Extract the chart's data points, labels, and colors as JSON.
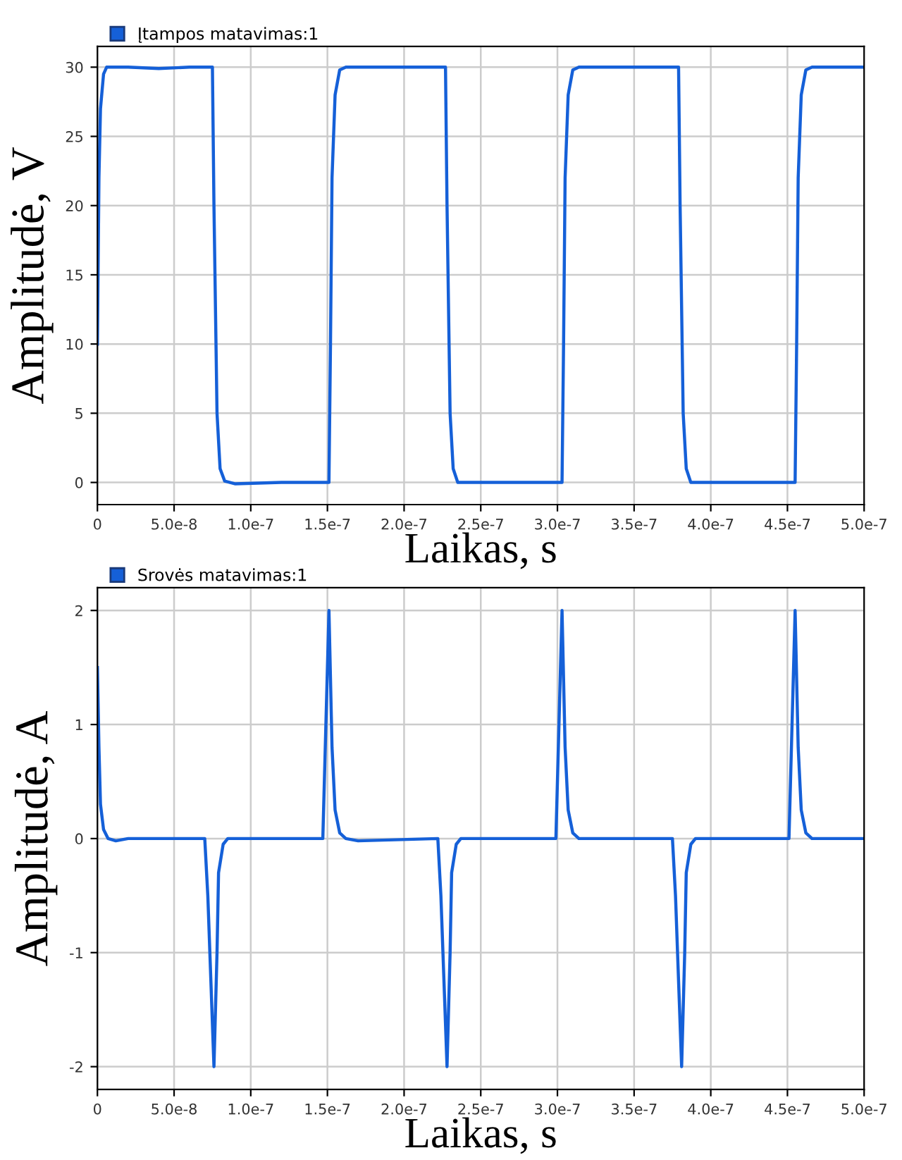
{
  "chart_data": [
    {
      "type": "line",
      "xlabel": "Laikas, s",
      "ylabel": "Amplitudė, V",
      "legend": "top left",
      "grid": true,
      "xlim": [
        0,
        5e-07
      ],
      "ylim": [
        -1.6,
        31.5
      ],
      "xticks": [
        0,
        {
          "value": 5e-08,
          "label": "5.0e-8"
        },
        {
          "value": 1e-07,
          "label": "1.0e-7"
        },
        {
          "value": 1.5e-07,
          "label": "1.5e-7"
        },
        {
          "value": 2e-07,
          "label": "2.0e-7"
        },
        {
          "value": 2.5e-07,
          "label": "2.5e-7"
        },
        {
          "value": 3e-07,
          "label": "3.0e-7"
        },
        {
          "value": 3.5e-07,
          "label": "3.5e-7"
        },
        {
          "value": 4e-07,
          "label": "4.0e-7"
        },
        {
          "value": 4.5e-07,
          "label": "4.5e-7"
        },
        {
          "value": 5e-07,
          "label": "5.0e-7"
        }
      ],
      "yticks": [
        0,
        5,
        10,
        15,
        20,
        25,
        30
      ],
      "series": [
        {
          "name": "Įtampos matavimas:1",
          "color": "#1560d8",
          "x": [
            0,
            1e-09,
            2e-09,
            4e-09,
            6e-09,
            2e-08,
            4e-08,
            6e-08,
            7.5e-08,
            7.6e-08,
            7.8e-08,
            8e-08,
            8.3e-08,
            9e-08,
            1.2e-07,
            1.51e-07,
            1.52e-07,
            1.53e-07,
            1.55e-07,
            1.58e-07,
            1.62e-07,
            2e-07,
            2.27e-07,
            2.28e-07,
            2.3e-07,
            2.32e-07,
            2.35e-07,
            2.7e-07,
            3.03e-07,
            3.04e-07,
            3.05e-07,
            3.07e-07,
            3.1e-07,
            3.14e-07,
            3.5e-07,
            3.79e-07,
            3.8e-07,
            3.82e-07,
            3.84e-07,
            3.87e-07,
            4.2e-07,
            4.55e-07,
            4.56e-07,
            4.57e-07,
            4.59e-07,
            4.62e-07,
            4.66e-07,
            5e-07
          ],
          "values": [
            10,
            22,
            27,
            29.5,
            30,
            30,
            29.9,
            30,
            30,
            20,
            5,
            1,
            0.1,
            -0.1,
            0,
            0,
            10,
            22,
            28,
            29.8,
            30,
            30,
            30,
            20,
            5,
            1,
            0,
            0,
            0,
            10,
            22,
            28,
            29.8,
            30,
            30,
            30,
            20,
            5,
            1,
            0,
            0,
            0,
            10,
            22,
            28,
            29.8,
            30,
            30
          ]
        }
      ]
    },
    {
      "type": "line",
      "xlabel": "Laikas, s",
      "ylabel": "Amplitudė, A",
      "legend": "top left",
      "grid": true,
      "xlim": [
        0,
        5e-07
      ],
      "ylim": [
        -2.2,
        2.2
      ],
      "xticks": [
        0,
        {
          "value": 5e-08,
          "label": "5.0e-8"
        },
        {
          "value": 1e-07,
          "label": "1.0e-7"
        },
        {
          "value": 1.5e-07,
          "label": "1.5e-7"
        },
        {
          "value": 2e-07,
          "label": "2.0e-7"
        },
        {
          "value": 2.5e-07,
          "label": "2.5e-7"
        },
        {
          "value": 3e-07,
          "label": "3.0e-7"
        },
        {
          "value": 3.5e-07,
          "label": "3.5e-7"
        },
        {
          "value": 4e-07,
          "label": "4.0e-7"
        },
        {
          "value": 4.5e-07,
          "label": "4.5e-7"
        },
        {
          "value": 5e-07,
          "label": "5.0e-7"
        }
      ],
      "yticks": [
        -2,
        -1,
        0,
        1,
        2
      ],
      "series": [
        {
          "name": "Srovės matavimas:1",
          "color": "#1560d8",
          "x": [
            0,
            1e-09,
            2e-09,
            4e-09,
            7e-09,
            1.2e-08,
            2e-08,
            7e-08,
            7.2e-08,
            7.6e-08,
            7.8e-08,
            7.9e-08,
            8.2e-08,
            8.5e-08,
            1.47e-07,
            1.51e-07,
            1.53e-07,
            1.55e-07,
            1.58e-07,
            1.62e-07,
            1.7e-07,
            2.22e-07,
            2.24e-07,
            2.28e-07,
            2.3e-07,
            2.31e-07,
            2.34e-07,
            2.37e-07,
            2.99e-07,
            3.03e-07,
            3.05e-07,
            3.07e-07,
            3.1e-07,
            3.14e-07,
            3.75e-07,
            3.77e-07,
            3.81e-07,
            3.83e-07,
            3.84e-07,
            3.87e-07,
            3.9e-07,
            4.51e-07,
            4.55e-07,
            4.57e-07,
            4.59e-07,
            4.62e-07,
            4.66e-07,
            5e-07
          ],
          "values": [
            1.5,
            0.8,
            0.3,
            0.08,
            0,
            -0.02,
            0,
            0,
            -0.5,
            -2,
            -1.0,
            -0.3,
            -0.05,
            0,
            0,
            2,
            0.8,
            0.25,
            0.05,
            0,
            -0.02,
            0,
            -0.5,
            -2,
            -1.0,
            -0.3,
            -0.05,
            0,
            0,
            2,
            0.8,
            0.25,
            0.05,
            0,
            0,
            -0.5,
            -2,
            -1.0,
            -0.3,
            -0.05,
            0,
            0,
            2,
            0.8,
            0.25,
            0.05,
            0,
            0
          ]
        }
      ]
    }
  ]
}
